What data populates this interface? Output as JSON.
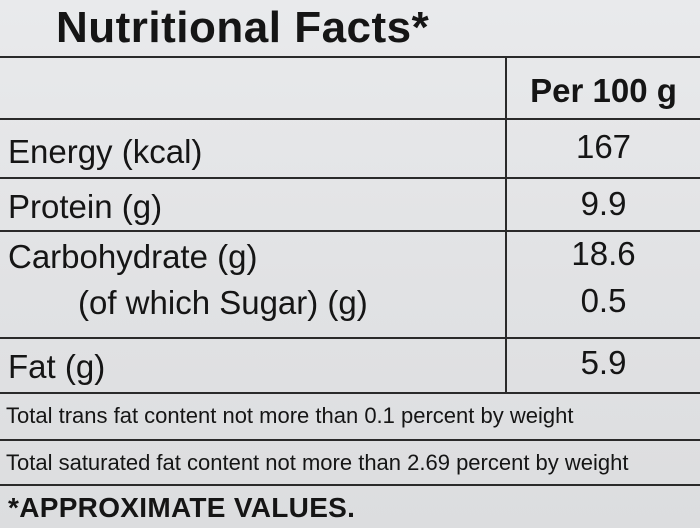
{
  "title": "Nutritional Facts*",
  "table": {
    "column_header": "Per 100 g",
    "rows": [
      {
        "label": "Energy (kcal)",
        "value": "167"
      },
      {
        "label": "Protein (g)",
        "value": "9.9"
      },
      {
        "label": "Carbohydrate (g)",
        "value": "18.6"
      },
      {
        "label": "(of which Sugar) (g)",
        "value": "0.5"
      },
      {
        "label": "Fat (g)",
        "value": "5.9"
      }
    ]
  },
  "notes": [
    "Total trans fat content not more than 0.1 percent by weight",
    "Total saturated fat content not more than 2.69 percent by weight"
  ],
  "footer": "*APPROXIMATE VALUES."
}
